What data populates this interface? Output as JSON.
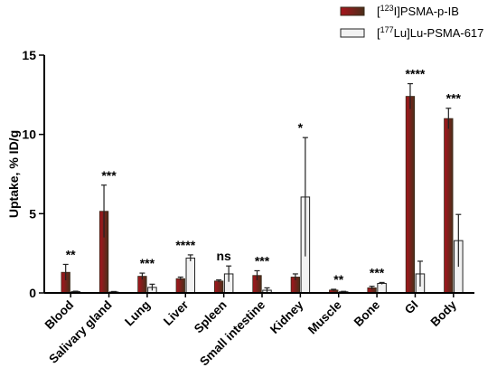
{
  "chart_data": {
    "type": "bar",
    "ylabel": "Uptake, % ID/g",
    "xlabel": "",
    "ylim": [
      0,
      15
    ],
    "yticks": [
      0,
      5,
      10,
      15
    ],
    "categories": [
      "Blood",
      "Salivary gland",
      "Lung",
      "Liver",
      "Spleen",
      "Small intestine",
      "Kidney",
      "Muscle",
      "Bone",
      "GI",
      "Body"
    ],
    "series": [
      {
        "name": "[123I]PSMA-p-IB",
        "legend_prefix": "[",
        "legend_sup": "123",
        "legend_suffix": "I]PSMA-p-IB",
        "values": [
          1.3,
          5.15,
          1.05,
          0.9,
          0.75,
          1.1,
          1.0,
          0.18,
          0.32,
          12.4,
          11.0
        ],
        "errors": [
          0.5,
          1.65,
          0.2,
          0.1,
          0.07,
          0.3,
          0.2,
          0.05,
          0.1,
          0.8,
          0.65
        ]
      },
      {
        "name": "[177Lu]Lu-PSMA-617",
        "legend_prefix": "[",
        "legend_sup": "177",
        "legend_suffix": "Lu]Lu-PSMA-617",
        "values": [
          0.08,
          0.06,
          0.35,
          2.2,
          1.2,
          0.17,
          6.05,
          0.07,
          0.6,
          1.2,
          3.3
        ],
        "errors": [
          0.03,
          0.03,
          0.2,
          0.2,
          0.5,
          0.15,
          3.75,
          0.03,
          0.06,
          0.8,
          1.65
        ]
      }
    ],
    "significance": [
      "**",
      "***",
      "***",
      "****",
      "ns",
      "***",
      "*",
      "**",
      "***",
      "****",
      "***"
    ],
    "colors": {
      "series1_gradient": [
        "#a8141c",
        "#4a2f1a"
      ],
      "series2_fill": "#f2f2f2",
      "edge": "#222222"
    }
  }
}
